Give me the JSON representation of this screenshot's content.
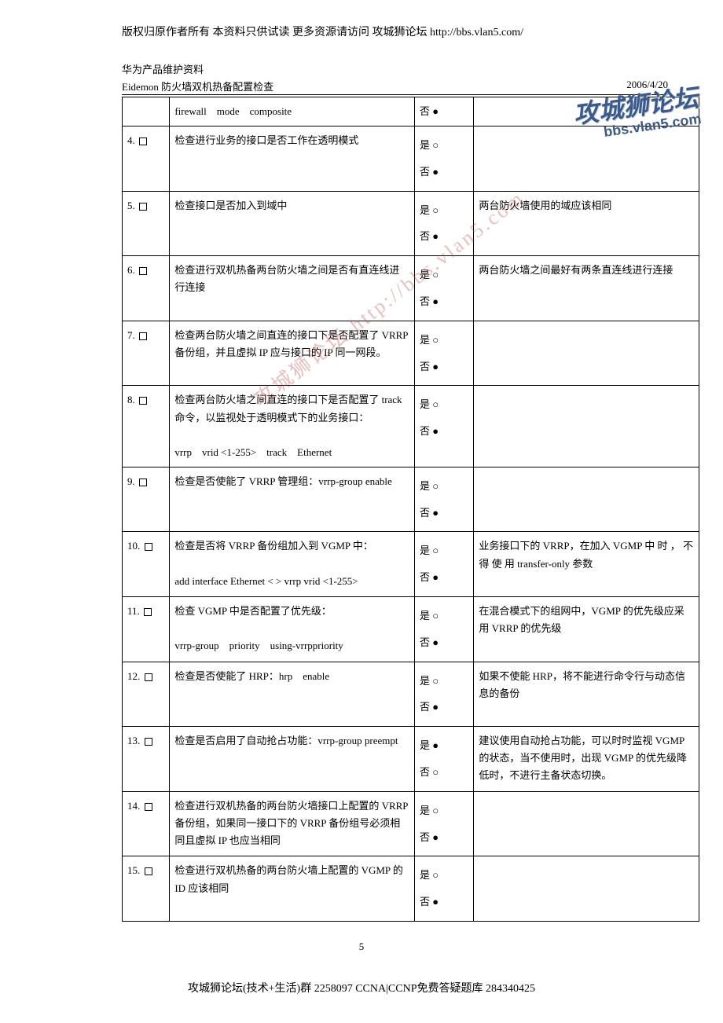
{
  "topBanner": "版权归原作者所有 本资料只供试读 更多资源请访问 攻城狮论坛 http://bbs.vlan5.com/",
  "header": {
    "line1": "华为产品维护资料",
    "line2": "Eidemon 防火墙双机热备配置检查",
    "date": "2006/4/20"
  },
  "watermark1a": "攻城狮论坛",
  "watermark1b": "bbs.vlan5.com",
  "watermark2": "攻城狮论坛 http://bbs.vlan5.com",
  "yes": "是",
  "no": "否",
  "radioEmpty": "○",
  "radioFilled": "●",
  "rows": [
    {
      "num": "",
      "desc": "firewall　mode　composite",
      "noFilled": true,
      "singleNo": true,
      "remark": ""
    },
    {
      "num": "4.",
      "desc": "检查进行业务的接口是否工作在透明模式",
      "noFilled": true,
      "remark": ""
    },
    {
      "num": "5.",
      "desc": "检查接口是否加入到域中",
      "noFilled": true,
      "remark": "两台防火墙使用的域应该相同"
    },
    {
      "num": "6.",
      "desc": "检查进行双机热备两台防火墙之间是否有直连线进行连接",
      "noFilled": true,
      "remark": "两台防火墙之间最好有两条直连线进行连接"
    },
    {
      "num": "7.",
      "desc": "检查两台防火墙之间直连的接口下是否配置了 VRRP 备份组，并且虚拟 IP 应与接口的 IP 同一网段。",
      "noFilled": true,
      "remark": ""
    },
    {
      "num": "8.",
      "desc": "检查两台防火墙之间直连的接口下是否配置了 track 命令，以监视处于透明模式下的业务接口：\n\nvrrp　vrid <1-255>　track　Ethernet",
      "noFilled": true,
      "remark": ""
    },
    {
      "num": "9.",
      "desc": "检查是否使能了 VRRP 管理组：vrrp-group enable",
      "noFilled": true,
      "remark": ""
    },
    {
      "num": "10.",
      "desc": "检查是否将 VRRP 备份组加入到 VGMP 中：\n\nadd interface Ethernet < > vrrp vrid <1-255>",
      "noFilled": true,
      "remark": "业务接口下的 VRRP，在加入 VGMP 中 时 ， 不 得 使 用 transfer-only 参数"
    },
    {
      "num": "11.",
      "desc": "检查 VGMP 中是否配置了优先级：\n\nvrrp-group　priority　using-vrrppriority",
      "noFilled": true,
      "remark": "在混合模式下的组网中，VGMP 的优先级应采用 VRRP 的优先级"
    },
    {
      "num": "12.",
      "desc": "检查是否使能了 HRP：hrp　enable",
      "noFilled": true,
      "remark": "如果不使能 HRP，将不能进行命令行与动态信息的备份"
    },
    {
      "num": "13.",
      "desc": "检查是否启用了自动抢占功能：vrrp-group preempt",
      "yesFilled": true,
      "remark": "建议使用自动抢占功能，可以时时监视 VGMP 的状态，当不使用时，出现 VGMP 的优先级降低时，不进行主备状态切换。"
    },
    {
      "num": "14.",
      "desc": "检查进行双机热备的两台防火墙接口上配置的 VRRP 备份组，如果同一接口下的 VRRP 备份组号必须相同且虚拟 IP 也应当相同",
      "noFilled": true,
      "remark": ""
    },
    {
      "num": "15.",
      "desc": "检查进行双机热备的两台防火墙上配置的 VGMP 的 ID 应该相同",
      "noFilled": true,
      "remark": ""
    }
  ],
  "pageNumber": "5",
  "footer": "攻城狮论坛(技术+生活)群 2258097 CCNA|CCNP免费答疑题库 284340425"
}
